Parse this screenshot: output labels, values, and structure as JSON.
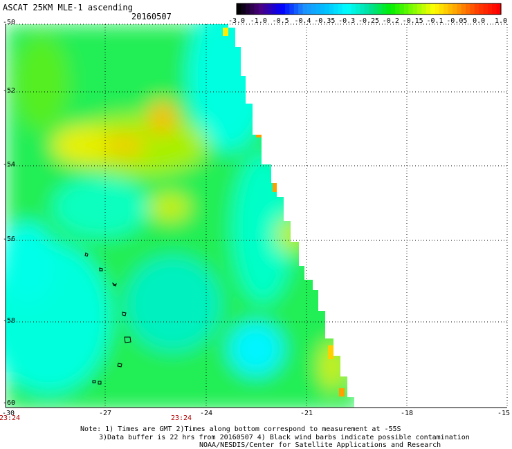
{
  "header": {
    "title": "ASCAT 25KM MLE-1 ascending",
    "date": "20160507"
  },
  "colorbar": {
    "labels": [
      "-3.0",
      "-1.0",
      "-0.5",
      "-0.4",
      "-0.35",
      "-0.3",
      "-0.25",
      "-0.2",
      "-0.15",
      "-0.1",
      "-0.05",
      "0.0",
      "1.0"
    ],
    "colors": [
      "#000000",
      "#4b0082",
      "#0000ff",
      "#1e90ff",
      "#00bfff",
      "#00ffff",
      "#00e0a0",
      "#00ee00",
      "#7cfc00",
      "#ffff00",
      "#ffa500",
      "#ff4000",
      "#ff0000"
    ]
  },
  "map": {
    "lat_labels": [
      "-50",
      "-52",
      "-54",
      "-56",
      "-58",
      "-60"
    ],
    "lon_labels": [
      "-30",
      "-27",
      "-24",
      "-21",
      "-18",
      "-15"
    ],
    "time_labels": [
      "23:24",
      "23:24"
    ]
  },
  "notes": {
    "line1": "Note: 1) Times are GMT 2)Times along bottom correspond to measurement at -55S",
    "line2": "3)Data buffer is 22 hrs from 20160507 4) Black wind barbs indicate possible contamination",
    "line3": "NOAA/NESDIS/Center for Satellite Applications and Research"
  }
}
